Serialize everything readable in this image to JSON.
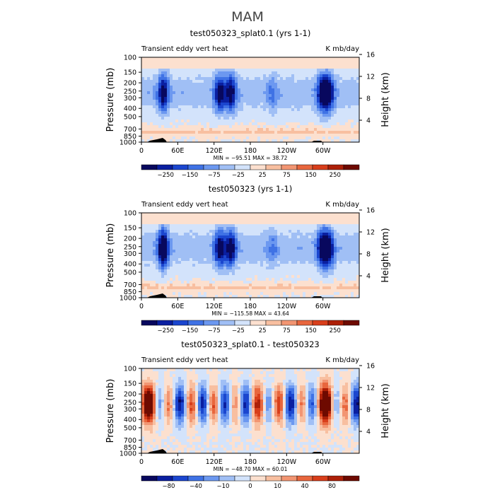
{
  "figure": {
    "title": "MAM"
  },
  "chart_data": [
    {
      "type": "heatmap",
      "title": "test050323_splat0.1 (yrs 1-1)",
      "left_label": "Transient eddy vert heat",
      "right_label": "K mb/day",
      "ylabel": "Pressure (mb)",
      "ylabel_right": "Height (km)",
      "pressure_ticks": [
        100,
        150,
        200,
        250,
        300,
        400,
        500,
        700,
        850,
        1000
      ],
      "height_ticks": [
        4,
        8,
        12,
        16
      ],
      "lon_ticks": [
        "0",
        "60E",
        "120E",
        "180",
        "120W",
        "60W"
      ],
      "stats": "MIN = −95.51   MAX =  38.72",
      "colorbar_labels": [
        "−250",
        "−150",
        "−75",
        "−25",
        "25",
        "75",
        "150",
        "250"
      ],
      "min": -95.51,
      "max": 38.72
    },
    {
      "type": "heatmap",
      "title": "test050323 (yrs 1-1)",
      "left_label": "Transient eddy vert heat",
      "right_label": "K mb/day",
      "ylabel": "Pressure (mb)",
      "ylabel_right": "Height (km)",
      "pressure_ticks": [
        100,
        150,
        200,
        250,
        300,
        400,
        500,
        700,
        850,
        1000
      ],
      "height_ticks": [
        4,
        8,
        12,
        16
      ],
      "lon_ticks": [
        "0",
        "60E",
        "120E",
        "180",
        "120W",
        "60W"
      ],
      "stats": "MIN = −115.58   MAX =  43.64",
      "colorbar_labels": [
        "−250",
        "−150",
        "−75",
        "−25",
        "25",
        "75",
        "150",
        "250"
      ],
      "min": -115.58,
      "max": 43.64
    },
    {
      "type": "heatmap",
      "title": "test050323_splat0.1 - test050323",
      "left_label": "Transient eddy vert heat",
      "right_label": "K mb/day",
      "ylabel": "Pressure (mb)",
      "ylabel_right": "Height (km)",
      "pressure_ticks": [
        100,
        150,
        200,
        250,
        300,
        400,
        500,
        700,
        850,
        1000
      ],
      "height_ticks": [
        4,
        8,
        12,
        16
      ],
      "lon_ticks": [
        "0",
        "60E",
        "120E",
        "180",
        "120W",
        "60W"
      ],
      "stats": "MIN = −48.70   MAX =  60.01",
      "colorbar_labels": [
        "−80",
        "−40",
        "−10",
        "0",
        "10",
        "40",
        "80"
      ],
      "min": -48.7,
      "max": 60.01
    }
  ],
  "palette": {
    "blue_red": [
      "#08085e",
      "#0a1fa0",
      "#1b46cf",
      "#3f72e5",
      "#6c98f0",
      "#a0bff5",
      "#d3e3fb",
      "#fce0cf",
      "#f8bfa0",
      "#f29572",
      "#e8663d",
      "#d83e1b",
      "#ad2008",
      "#6e0a00"
    ],
    "diff": [
      "#08085e",
      "#0a1fa0",
      "#1b46cf",
      "#3f72e5",
      "#6c98f0",
      "#a0bff5",
      "#d3e3fb",
      "#fce0cf",
      "#f8bfa0",
      "#f29572",
      "#e8663d",
      "#d83e1b",
      "#ad2008",
      "#6e0a00"
    ]
  }
}
